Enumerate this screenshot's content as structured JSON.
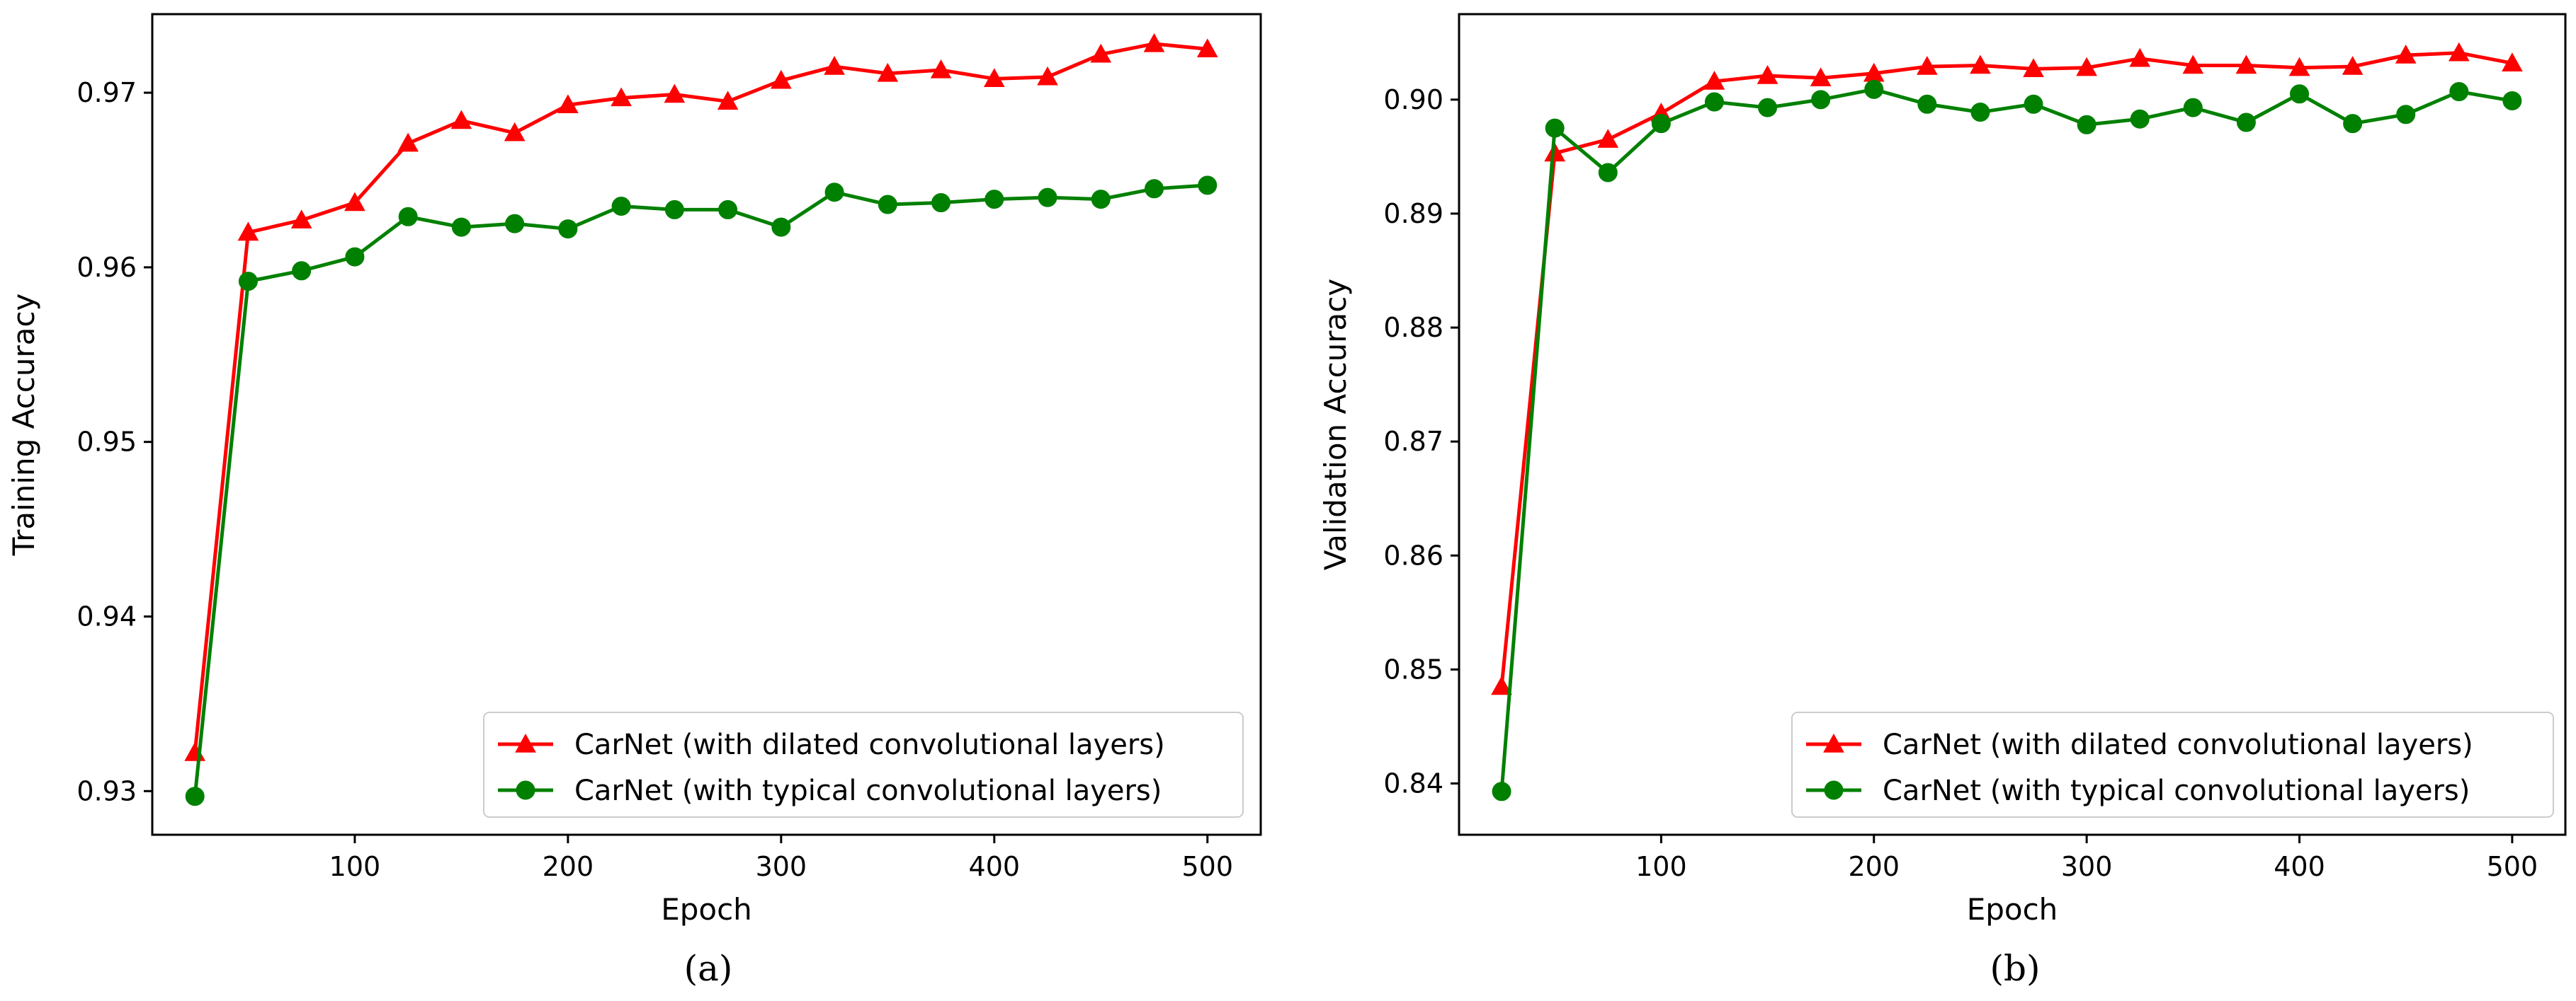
{
  "chart_data": [
    {
      "type": "line",
      "xlabel": "Epoch",
      "ylabel": "Training Accuracy",
      "caption": "(a)",
      "xlim": [
        5,
        525
      ],
      "ylim": [
        0.9275,
        0.9745
      ],
      "xticks": [
        100,
        200,
        300,
        400,
        500
      ],
      "xtick_labels": [
        "100",
        "200",
        "300",
        "400",
        "500"
      ],
      "yticks": [
        0.93,
        0.94,
        0.95,
        0.96,
        0.97
      ],
      "ytick_labels": [
        "0.93",
        "0.94",
        "0.95",
        "0.96",
        "0.97"
      ],
      "grid": false,
      "legend_position": "lower-right",
      "x": [
        25,
        50,
        75,
        100,
        125,
        150,
        175,
        200,
        225,
        250,
        275,
        300,
        325,
        350,
        375,
        400,
        425,
        450,
        475,
        500
      ],
      "series": [
        {
          "name": "CarNet (with dilated convolutional layers)",
          "color": "#ff0000",
          "marker": "triangle",
          "values": [
            0.9322,
            0.962,
            0.9627,
            0.9637,
            0.9671,
            0.9684,
            0.9677,
            0.9693,
            0.9697,
            0.9699,
            0.9695,
            0.9707,
            0.9715,
            0.9711,
            0.9713,
            0.9708,
            0.9709,
            0.9722,
            0.9728,
            0.9725
          ]
        },
        {
          "name": "CarNet (with typical convolutional layers)",
          "color": "#008000",
          "marker": "circle",
          "values": [
            0.9297,
            0.9592,
            0.9598,
            0.9606,
            0.9629,
            0.9623,
            0.9625,
            0.9622,
            0.9635,
            0.9633,
            0.9633,
            0.9623,
            0.9643,
            0.9636,
            0.9637,
            0.9639,
            0.964,
            0.9639,
            0.9645,
            0.9647
          ]
        }
      ]
    },
    {
      "type": "line",
      "xlabel": "Epoch",
      "ylabel": "Validation Accuracy",
      "caption": "(b)",
      "xlim": [
        5,
        525
      ],
      "ylim": [
        0.8355,
        0.9075
      ],
      "xticks": [
        100,
        200,
        300,
        400,
        500
      ],
      "xtick_labels": [
        "100",
        "200",
        "300",
        "400",
        "500"
      ],
      "yticks": [
        0.84,
        0.85,
        0.86,
        0.87,
        0.88,
        0.89,
        0.9
      ],
      "ytick_labels": [
        "0.84",
        "0.85",
        "0.86",
        "0.87",
        "0.88",
        "0.89",
        "0.90"
      ],
      "grid": false,
      "legend_position": "lower-right",
      "x": [
        25,
        50,
        75,
        100,
        125,
        150,
        175,
        200,
        225,
        250,
        275,
        300,
        325,
        350,
        375,
        400,
        425,
        450,
        475,
        500
      ],
      "series": [
        {
          "name": "CarNet (with dilated convolutional layers)",
          "color": "#ff0000",
          "marker": "triangle",
          "values": [
            0.8485,
            0.8953,
            0.8965,
            0.8988,
            0.9016,
            0.9021,
            0.9019,
            0.9023,
            0.9029,
            0.903,
            0.9027,
            0.9028,
            0.9036,
            0.903,
            0.903,
            0.9028,
            0.9029,
            0.9039,
            0.9041,
            0.9032
          ]
        },
        {
          "name": "CarNet (with typical convolutional layers)",
          "color": "#008000",
          "marker": "circle",
          "values": [
            0.8393,
            0.8975,
            0.8936,
            0.8979,
            0.8998,
            0.8993,
            0.9,
            0.9009,
            0.8996,
            0.8989,
            0.8996,
            0.8978,
            0.8983,
            0.8993,
            0.898,
            0.9005,
            0.8979,
            0.8987,
            0.9007,
            0.8999
          ]
        }
      ]
    }
  ]
}
